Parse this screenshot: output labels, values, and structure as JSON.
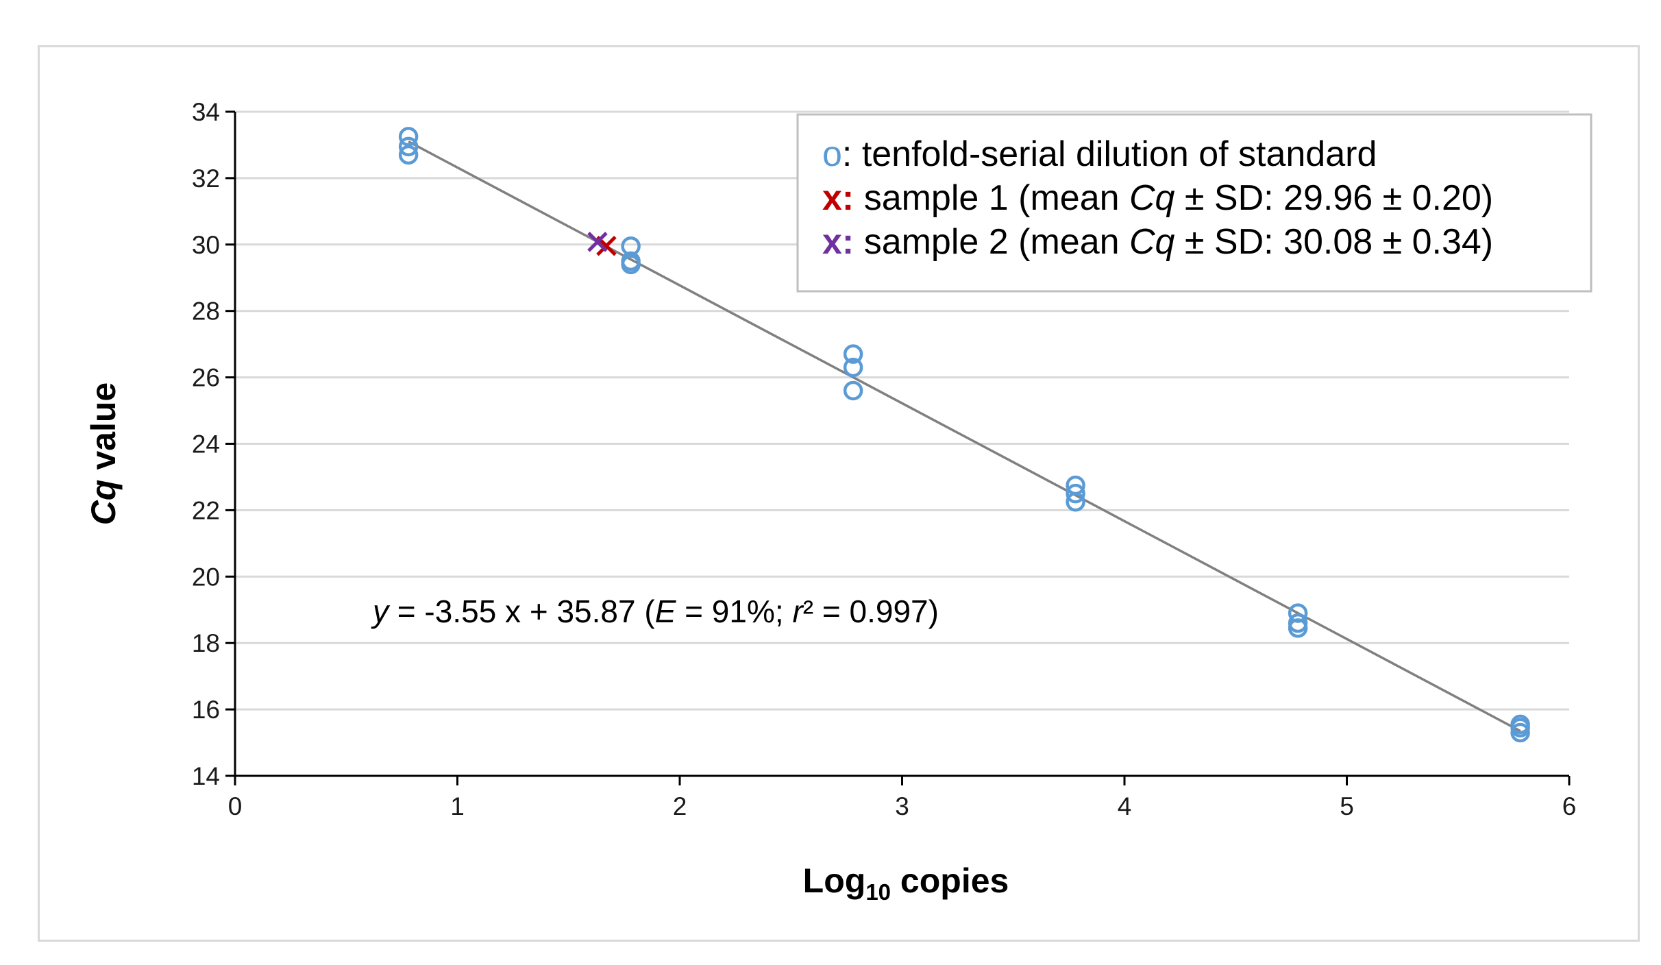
{
  "chart_data": {
    "type": "scatter",
    "xlabel": {
      "main": "Log",
      "sub": "10",
      "rest": " copies"
    },
    "ylabel": {
      "italic": "Cq",
      "rest": " value"
    },
    "xlim": [
      0,
      6
    ],
    "ylim": [
      14,
      34
    ],
    "xticks": [
      "0",
      "1",
      "2",
      "3",
      "4",
      "5",
      "6"
    ],
    "yticks": [
      "14",
      "16",
      "18",
      "20",
      "22",
      "24",
      "26",
      "28",
      "30",
      "32",
      "34"
    ],
    "grid": "horizontal",
    "legend_position": "top-right",
    "colors": {
      "standard": "#5b9bd5",
      "sample1": "#c00000",
      "sample2": "#7030a0",
      "fit": "#808080",
      "grid": "#d9d9d9",
      "axis": "#000000"
    },
    "series": [
      {
        "name": "tenfold-serial dilution of standard",
        "marker": "circle",
        "points": [
          [
            0.78,
            33.25
          ],
          [
            0.78,
            32.95
          ],
          [
            0.78,
            32.7
          ],
          [
            1.78,
            29.95
          ],
          [
            1.78,
            29.5
          ],
          [
            1.78,
            29.4
          ],
          [
            2.78,
            26.7
          ],
          [
            2.78,
            26.3
          ],
          [
            2.78,
            25.6
          ],
          [
            3.78,
            22.75
          ],
          [
            3.78,
            22.5
          ],
          [
            3.78,
            22.25
          ],
          [
            4.78,
            18.9
          ],
          [
            4.78,
            18.6
          ],
          [
            4.78,
            18.45
          ],
          [
            5.78,
            15.55
          ],
          [
            5.78,
            15.45
          ],
          [
            5.78,
            15.3
          ]
        ]
      },
      {
        "name": "sample 1",
        "marker": "x",
        "points": [
          [
            1.67,
            29.96
          ]
        ]
      },
      {
        "name": "sample 2",
        "marker": "x",
        "points": [
          [
            1.63,
            30.08
          ]
        ]
      }
    ],
    "fit_line": {
      "slope": -3.55,
      "intercept": 35.87,
      "x_range": [
        0.78,
        5.78
      ]
    },
    "legend": [
      {
        "symbol": "o",
        "text": ": tenfold-serial dilution of standard"
      },
      {
        "symbol": "x:",
        "text_pre": " sample 1 (mean ",
        "italic": "Cq",
        "text_post": " ± SD: 29.96 ± 0.20)"
      },
      {
        "symbol": "x:",
        "text_pre": " sample 2 (mean ",
        "italic": "Cq",
        "text_post": " ± SD: 30.08 ± 0.34)"
      }
    ],
    "equation": {
      "y": "y",
      "part1": " = -3.55 x + 35.87 (",
      "E": "E",
      "part2": " = 91%; ",
      "r": "r",
      "part3": "² = 0.997)"
    }
  }
}
